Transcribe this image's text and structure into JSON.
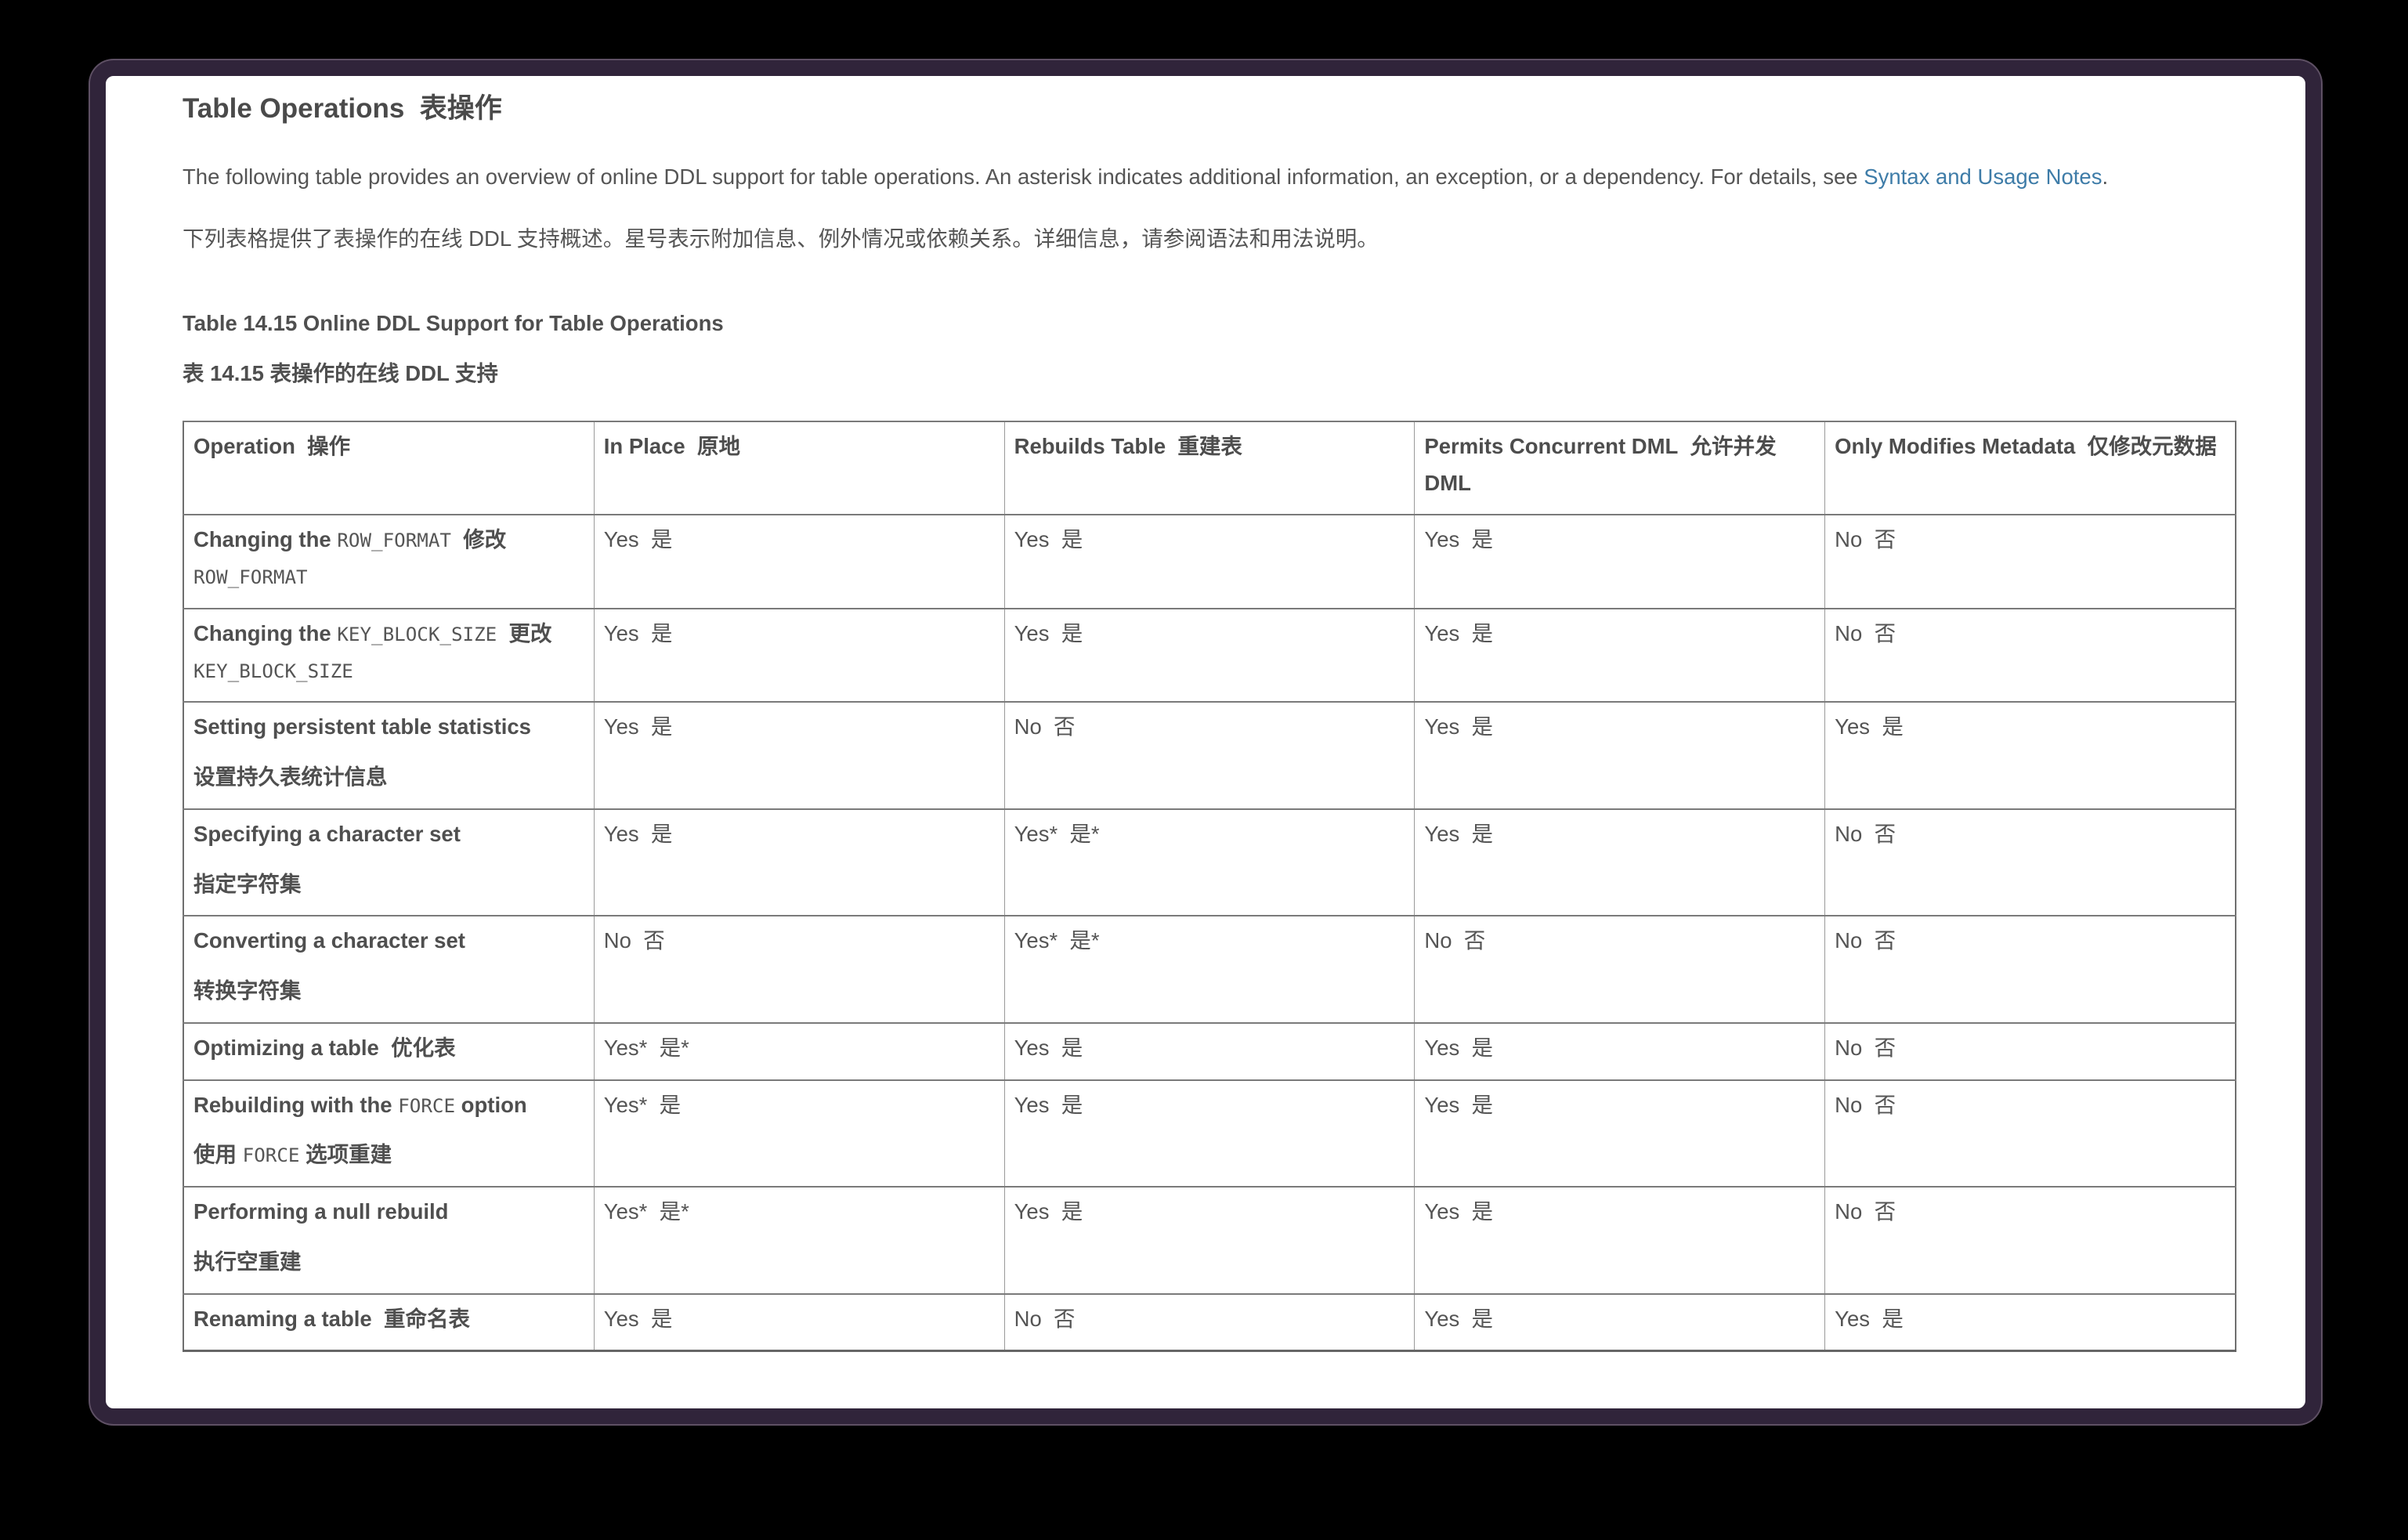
{
  "page": {
    "title": "Table Operations  表操作",
    "intro_en": {
      "before": "The following table provides an overview of online DDL support for table operations. An asterisk indicates additional information, an exception, or a dependency. For details, see ",
      "link": "Syntax and Usage Notes",
      "after": "."
    },
    "intro_zh": "下列表格提供了表操作的在线 DDL 支持概述。星号表示附加信息、例外情况或依赖关系。详细信息，请参阅语法和用法说明。",
    "link_color": "#3e7ca8"
  },
  "table": {
    "caption_en": "Table 14.15 Online DDL Support for Table Operations",
    "caption_zh": "表 14.15 表操作的在线 DDL 支持",
    "columns": [
      "Operation  操作",
      "In Place  原地",
      "Rebuilds Table  重建表",
      "Permits Concurrent DML  允许并发 DML",
      "Only Modifies Metadata  仅修改元数据"
    ],
    "rows": [
      {
        "operation": [
          [
            {
              "b": "Changing the "
            },
            {
              "m": "ROW_FORMAT"
            },
            {
              "b": "  修改 "
            },
            {
              "m": "ROW_FORMAT"
            }
          ]
        ],
        "cells": [
          "Yes  是",
          "Yes  是",
          "Yes  是",
          "No  否"
        ]
      },
      {
        "operation": [
          [
            {
              "b": "Changing the "
            },
            {
              "m": "KEY_BLOCK_SIZE"
            },
            {
              "b": "  更改 "
            },
            {
              "m": "KEY_BLOCK_SIZE"
            }
          ]
        ],
        "cells": [
          "Yes  是",
          "Yes  是",
          "Yes  是",
          "No  否"
        ]
      },
      {
        "operation": [
          [
            {
              "b": "Setting persistent table statistics"
            }
          ],
          [
            {
              "b": "设置持久表统计信息"
            }
          ]
        ],
        "cells": [
          "Yes  是",
          "No  否",
          "Yes  是",
          "Yes  是"
        ]
      },
      {
        "operation": [
          [
            {
              "b": "Specifying a character set"
            }
          ],
          [
            {
              "b": "指定字符集"
            }
          ]
        ],
        "cells": [
          "Yes  是",
          "Yes*  是*",
          "Yes  是",
          "No  否"
        ]
      },
      {
        "operation": [
          [
            {
              "b": "Converting a character set"
            }
          ],
          [
            {
              "b": "转换字符集"
            }
          ]
        ],
        "cells": [
          "No  否",
          "Yes*  是*",
          "No  否",
          "No  否"
        ]
      },
      {
        "operation": [
          [
            {
              "b": "Optimizing a table  优化表"
            }
          ]
        ],
        "cells": [
          "Yes*  是*",
          "Yes  是",
          "Yes  是",
          "No  否"
        ]
      },
      {
        "operation": [
          [
            {
              "b": "Rebuilding with the "
            },
            {
              "m": "FORCE"
            },
            {
              "b": " option"
            }
          ],
          [
            {
              "b": "使用 "
            },
            {
              "m": "FORCE"
            },
            {
              "b": " 选项重建"
            }
          ]
        ],
        "cells": [
          "Yes*  是",
          "Yes  是",
          "Yes  是",
          "No  否"
        ]
      },
      {
        "operation": [
          [
            {
              "b": "Performing a null rebuild"
            }
          ],
          [
            {
              "b": "执行空重建"
            }
          ]
        ],
        "cells": [
          "Yes*  是*",
          "Yes  是",
          "Yes  是",
          "No  否"
        ]
      },
      {
        "operation": [
          [
            {
              "b": "Renaming a table  重命名表"
            }
          ]
        ],
        "cells": [
          "Yes  是",
          "No  否",
          "Yes  是",
          "Yes  是"
        ]
      }
    ]
  }
}
